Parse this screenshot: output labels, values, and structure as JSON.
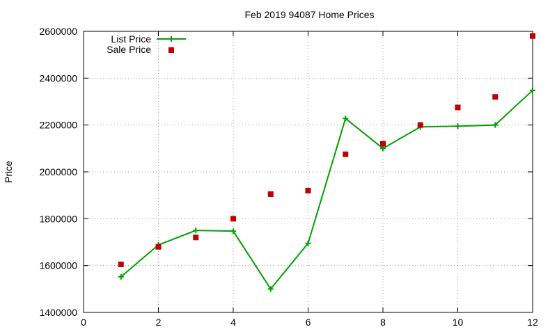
{
  "chart_data": {
    "type": "line",
    "title": "Feb 2019 94087 Home Prices",
    "xlabel": "",
    "ylabel": "Price",
    "xlim": [
      0,
      12
    ],
    "ylim": [
      1400000,
      2600000
    ],
    "xticks": [
      0,
      2,
      4,
      6,
      8,
      10,
      12
    ],
    "yticks": [
      1400000,
      1600000,
      1800000,
      2000000,
      2200000,
      2400000,
      2600000
    ],
    "xtick_labels": [
      "0",
      "2",
      "4",
      "6",
      "8",
      "10",
      "12"
    ],
    "ytick_labels": [
      "1400000",
      "1600000",
      "1800000",
      "2000000",
      "2200000",
      "2400000",
      "2600000"
    ],
    "grid": true,
    "legend_position": "top-left",
    "series": [
      {
        "name": "List Price",
        "style": "linespoints",
        "color": "#00a000",
        "marker": "plus",
        "x": [
          1,
          2,
          3,
          4,
          5,
          6,
          7,
          8,
          9,
          10,
          11,
          12
        ],
        "y": [
          1552000,
          1688000,
          1750000,
          1747000,
          1500000,
          1695000,
          2228000,
          2100000,
          2192000,
          2195000,
          2200000,
          2348000
        ]
      },
      {
        "name": "Sale Price",
        "style": "points",
        "color": "#c00000",
        "marker": "square",
        "x": [
          1,
          2,
          3,
          4,
          5,
          6,
          7,
          8,
          9,
          10,
          11,
          12
        ],
        "y": [
          1605000,
          1680000,
          1720000,
          1800000,
          1905000,
          1920000,
          2075000,
          2120000,
          2200000,
          2275000,
          2320000,
          2580000
        ]
      }
    ]
  }
}
